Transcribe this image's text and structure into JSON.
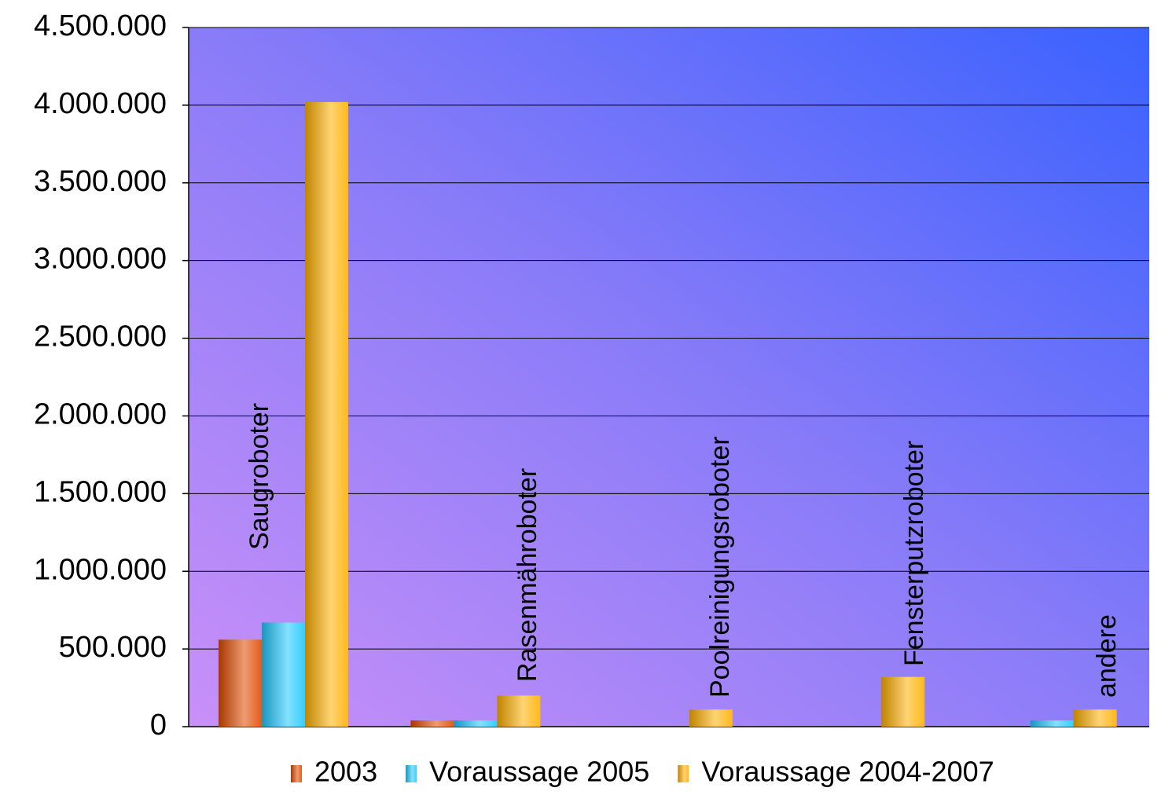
{
  "chart_data": {
    "type": "bar",
    "categories": [
      "Saugroboter",
      "Rasenmähroboter",
      "Poolreinigungsroboter",
      "Fensterputzroboter",
      "andere"
    ],
    "series": [
      {
        "name": "2003",
        "color": "#e04a00",
        "values": [
          560000,
          40000,
          null,
          null,
          null
        ]
      },
      {
        "name": "Voraussage 2005",
        "color": "#20c8ff",
        "values": [
          670000,
          40000,
          null,
          null,
          40000
        ]
      },
      {
        "name": "Voraussage 2004-2007",
        "color": "#ffb000",
        "values": [
          4020000,
          200000,
          110000,
          320000,
          110000
        ]
      }
    ],
    "ylim": [
      0,
      4500000
    ],
    "yticks": [
      0,
      {
        "value": 500000,
        "label": "500.000"
      },
      {
        "value": 1000000,
        "label": "1.000.000"
      },
      {
        "value": 1500000,
        "label": "1.500.000"
      },
      {
        "value": 2000000,
        "label": "2.000.000"
      },
      {
        "value": 2500000,
        "label": "2.500.000"
      },
      {
        "value": 3000000,
        "label": "3.000.000"
      },
      {
        "value": 3500000,
        "label": "3.500.000"
      },
      {
        "value": 4000000,
        "label": "4.000.000"
      },
      {
        "value": 4500000,
        "label": "4.500.000"
      }
    ],
    "grid": true,
    "legend": "bottom"
  }
}
